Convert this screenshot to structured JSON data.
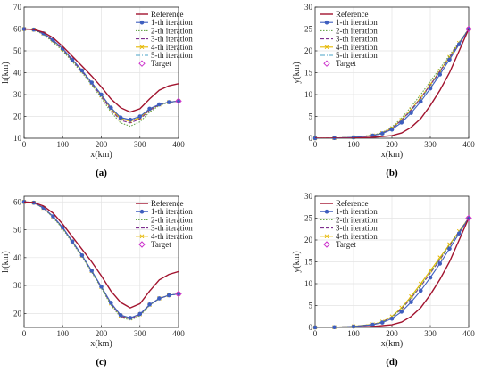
{
  "colors": {
    "Reference": "#a2142f",
    "1-th iteration": "#3f5fbf",
    "2-th iteration": "#6aa84f",
    "3-th iteration": "#7e2f8e",
    "4-th iteration": "#e6b800",
    "5-th iteration": "#4aa3c7",
    "Target": "#cc33cc"
  },
  "chart_data": [
    {
      "type": "line",
      "caption": "(a)",
      "xlabel": "x(km)",
      "ylabel": "h(km)",
      "xlim": [
        0,
        400
      ],
      "ylim": [
        10,
        70
      ],
      "xticks": [
        0,
        100,
        200,
        300,
        400
      ],
      "yticks": [
        10,
        20,
        30,
        40,
        50,
        60,
        70
      ],
      "grid": true,
      "legend": "top-right",
      "legend_entries": [
        "Reference",
        "1-th iteration",
        "2-th iteration",
        "3-th iteration",
        "4-th iteration",
        "5-th iteration",
        "Target"
      ],
      "series": [
        {
          "name": "Reference",
          "x": [
            0,
            25,
            50,
            75,
            100,
            125,
            150,
            175,
            200,
            225,
            250,
            275,
            300,
            325,
            350,
            375,
            400
          ],
          "y": [
            60,
            59.8,
            58.5,
            56,
            52,
            47.5,
            43,
            38.5,
            33.5,
            28,
            24,
            22,
            23.5,
            28,
            32,
            34,
            35
          ]
        },
        {
          "name": "1-th iteration",
          "x": [
            0,
            25,
            50,
            75,
            100,
            125,
            150,
            175,
            200,
            225,
            250,
            275,
            300,
            325,
            350,
            375,
            400
          ],
          "y": [
            60,
            59.7,
            58,
            55,
            51,
            46,
            41,
            35.5,
            30,
            24,
            19.5,
            18.5,
            20,
            23.5,
            25.5,
            26.5,
            27
          ]
        },
        {
          "name": "2-th iteration",
          "x": [
            0,
            25,
            50,
            75,
            100,
            125,
            150,
            175,
            200,
            225,
            250,
            275,
            300,
            325,
            350,
            375,
            400
          ],
          "y": [
            60,
            59.7,
            57.5,
            54,
            50,
            45,
            40,
            34.5,
            28.5,
            22,
            17,
            15.5,
            17.5,
            22,
            25,
            26.5,
            27
          ]
        },
        {
          "name": "3-th iteration",
          "x": [
            0,
            25,
            50,
            75,
            100,
            125,
            150,
            175,
            200,
            225,
            250,
            275,
            300,
            325,
            350,
            375,
            400
          ],
          "y": [
            60,
            59.7,
            57.8,
            54.5,
            50.5,
            45.5,
            40.5,
            35,
            29.2,
            23,
            18.2,
            17,
            18.8,
            22.8,
            25.3,
            26.5,
            27
          ]
        },
        {
          "name": "4-th iteration",
          "x": [
            0,
            25,
            50,
            75,
            100,
            125,
            150,
            175,
            200,
            225,
            250,
            275,
            300,
            325,
            350,
            375,
            400
          ],
          "y": [
            60,
            59.7,
            57.9,
            54.8,
            50.8,
            45.8,
            40.8,
            35.3,
            29.6,
            23.5,
            18.9,
            17.8,
            19.4,
            23.1,
            25.4,
            26.5,
            27
          ]
        },
        {
          "name": "5-th iteration",
          "x": [
            0,
            25,
            50,
            75,
            100,
            125,
            150,
            175,
            200,
            225,
            250,
            275,
            300,
            325,
            350,
            375,
            400
          ],
          "y": [
            60,
            59.7,
            57.9,
            54.9,
            50.9,
            45.9,
            40.9,
            35.4,
            29.8,
            23.8,
            19.2,
            18.2,
            19.7,
            23.3,
            25.5,
            26.5,
            27
          ]
        }
      ],
      "target": {
        "x": 400,
        "y": 27
      }
    },
    {
      "type": "line",
      "caption": "(b)",
      "xlabel": "x(km)",
      "ylabel": "y(km)",
      "xlim": [
        0,
        400
      ],
      "ylim": [
        0,
        30
      ],
      "xticks": [
        0,
        100,
        200,
        300,
        400
      ],
      "yticks": [
        0,
        5,
        10,
        15,
        20,
        25,
        30
      ],
      "grid": true,
      "legend": "top-left",
      "legend_entries": [
        "Reference",
        "1-th iteration",
        "2-th iteration",
        "3-th iteration",
        "4-th iteration",
        "5-th iteration",
        "Target"
      ],
      "series": [
        {
          "name": "Reference",
          "x": [
            0,
            50,
            100,
            150,
            200,
            225,
            250,
            275,
            300,
            325,
            350,
            375,
            400
          ],
          "y": [
            0,
            0,
            0.05,
            0.2,
            0.6,
            1.2,
            2.5,
            4.5,
            7.5,
            11,
            15,
            20,
            25
          ]
        },
        {
          "name": "1-th iteration",
          "x": [
            0,
            50,
            100,
            150,
            175,
            200,
            225,
            250,
            275,
            300,
            325,
            350,
            375,
            400
          ],
          "y": [
            0,
            0.05,
            0.2,
            0.6,
            1.1,
            2,
            3.6,
            5.8,
            8.4,
            11.4,
            14.6,
            18,
            21.5,
            25
          ]
        },
        {
          "name": "2-th iteration",
          "x": [
            0,
            50,
            100,
            150,
            175,
            200,
            225,
            250,
            275,
            300,
            325,
            350,
            375,
            400
          ],
          "y": [
            0,
            0.05,
            0.25,
            0.7,
            1.3,
            2.6,
            4.6,
            7.2,
            10,
            13,
            16,
            19,
            22,
            25
          ]
        },
        {
          "name": "3-th iteration",
          "x": [
            0,
            50,
            100,
            150,
            175,
            200,
            225,
            250,
            275,
            300,
            325,
            350,
            375,
            400
          ],
          "y": [
            0,
            0.05,
            0.22,
            0.65,
            1.2,
            2.3,
            4.1,
            6.5,
            9.2,
            12.2,
            15.3,
            18.5,
            21.8,
            25
          ]
        },
        {
          "name": "4-th iteration",
          "x": [
            0,
            50,
            100,
            150,
            175,
            200,
            225,
            250,
            275,
            300,
            325,
            350,
            375,
            400
          ],
          "y": [
            0,
            0.05,
            0.22,
            0.65,
            1.2,
            2.3,
            4.2,
            6.6,
            9.3,
            12.3,
            15.4,
            18.6,
            21.8,
            25
          ]
        },
        {
          "name": "5-th iteration",
          "x": [
            0,
            50,
            100,
            150,
            175,
            200,
            225,
            250,
            275,
            300,
            325,
            350,
            375,
            400
          ],
          "y": [
            0,
            0.05,
            0.21,
            0.63,
            1.15,
            2.2,
            4,
            6.3,
            9,
            12,
            15.1,
            18.4,
            21.7,
            25
          ]
        }
      ],
      "target": {
        "x": 400,
        "y": 25
      }
    },
    {
      "type": "line",
      "caption": "(c)",
      "xlabel": "x(km)",
      "ylabel": "h(km)",
      "xlim": [
        0,
        400
      ],
      "ylim": [
        15,
        62
      ],
      "xticks": [
        0,
        100,
        200,
        300,
        400
      ],
      "yticks": [
        20,
        30,
        40,
        50,
        60
      ],
      "grid": true,
      "legend": "top-right",
      "legend_entries": [
        "Reference",
        "1-th iteration",
        "2-th iteration",
        "3-th iteration",
        "4-th iteration",
        "Target"
      ],
      "series": [
        {
          "name": "Reference",
          "x": [
            0,
            25,
            50,
            75,
            100,
            125,
            150,
            175,
            200,
            225,
            250,
            275,
            300,
            325,
            350,
            375,
            400
          ],
          "y": [
            60,
            59.8,
            58.5,
            56,
            52,
            47.5,
            43,
            38.5,
            33.5,
            28,
            24,
            22,
            23.5,
            28,
            32,
            34,
            35
          ]
        },
        {
          "name": "1-th iteration",
          "x": [
            0,
            25,
            50,
            75,
            100,
            125,
            150,
            175,
            200,
            225,
            250,
            275,
            300,
            325,
            350,
            375,
            400
          ],
          "y": [
            60,
            59.7,
            57.9,
            54.8,
            50.8,
            45.8,
            40.8,
            35.3,
            29.6,
            23.8,
            19.4,
            18.4,
            19.8,
            23.2,
            25.4,
            26.5,
            27
          ]
        },
        {
          "name": "2-th iteration",
          "x": [
            0,
            25,
            50,
            75,
            100,
            125,
            150,
            175,
            200,
            225,
            250,
            275,
            300,
            325,
            350,
            375,
            400
          ],
          "y": [
            60,
            59.7,
            57.7,
            54.4,
            50.3,
            45.3,
            40.3,
            34.8,
            29,
            23,
            18.6,
            17.6,
            19.2,
            22.9,
            25.3,
            26.5,
            27
          ]
        },
        {
          "name": "3-th iteration",
          "x": [
            0,
            25,
            50,
            75,
            100,
            125,
            150,
            175,
            200,
            225,
            250,
            275,
            300,
            325,
            350,
            375,
            400
          ],
          "y": [
            60,
            59.7,
            57.8,
            54.6,
            50.6,
            45.6,
            40.6,
            35.1,
            29.3,
            23.4,
            19,
            18,
            19.5,
            23,
            25.3,
            26.5,
            27
          ]
        },
        {
          "name": "4-th iteration",
          "x": [
            0,
            25,
            50,
            75,
            100,
            125,
            150,
            175,
            200,
            225,
            250,
            275,
            300,
            325,
            350,
            375,
            400
          ],
          "y": [
            60,
            59.7,
            57.8,
            54.7,
            50.7,
            45.7,
            40.7,
            35.2,
            29.5,
            23.6,
            19.2,
            18.2,
            19.7,
            23.1,
            25.4,
            26.5,
            27
          ]
        }
      ],
      "target": {
        "x": 400,
        "y": 27
      }
    },
    {
      "type": "line",
      "caption": "(d)",
      "xlabel": "x(km)",
      "ylabel": "y(km)",
      "xlim": [
        0,
        400
      ],
      "ylim": [
        0,
        30
      ],
      "xticks": [
        0,
        100,
        200,
        300,
        400
      ],
      "yticks": [
        0,
        5,
        10,
        15,
        20,
        25,
        30
      ],
      "grid": true,
      "legend": "top-left",
      "legend_entries": [
        "Reference",
        "1-th iteration",
        "2-th iteration",
        "3-th iteration",
        "4-th iteration",
        "Target"
      ],
      "series": [
        {
          "name": "Reference",
          "x": [
            0,
            50,
            100,
            150,
            200,
            225,
            250,
            275,
            300,
            325,
            350,
            375,
            400
          ],
          "y": [
            0,
            0,
            0.05,
            0.2,
            0.6,
            1.2,
            2.5,
            4.5,
            7.5,
            11,
            15,
            20,
            25
          ]
        },
        {
          "name": "1-th iteration",
          "x": [
            0,
            50,
            100,
            150,
            175,
            200,
            225,
            250,
            275,
            300,
            325,
            350,
            375,
            400
          ],
          "y": [
            0,
            0.05,
            0.2,
            0.6,
            1.1,
            2,
            3.6,
            5.8,
            8.4,
            11.4,
            14.6,
            18,
            21.5,
            25
          ]
        },
        {
          "name": "2-th iteration",
          "x": [
            0,
            50,
            100,
            150,
            175,
            200,
            225,
            250,
            275,
            300,
            325,
            350,
            375,
            400
          ],
          "y": [
            0,
            0.05,
            0.24,
            0.68,
            1.25,
            2.4,
            4.3,
            6.8,
            9.6,
            12.6,
            15.7,
            18.8,
            21.9,
            25
          ]
        },
        {
          "name": "3-th iteration",
          "x": [
            0,
            50,
            100,
            150,
            175,
            200,
            225,
            250,
            275,
            300,
            325,
            350,
            375,
            400
          ],
          "y": [
            0,
            0.05,
            0.23,
            0.66,
            1.22,
            2.35,
            4.2,
            6.7,
            9.4,
            12.4,
            15.5,
            18.7,
            21.9,
            25
          ]
        },
        {
          "name": "4-th iteration",
          "x": [
            0,
            50,
            100,
            150,
            175,
            200,
            225,
            250,
            275,
            300,
            325,
            350,
            375,
            400
          ],
          "y": [
            0,
            0.05,
            0.25,
            0.7,
            1.3,
            2.5,
            4.5,
            7.1,
            10,
            13,
            16,
            19,
            22,
            25
          ]
        }
      ],
      "target": {
        "x": 400,
        "y": 25
      }
    }
  ]
}
